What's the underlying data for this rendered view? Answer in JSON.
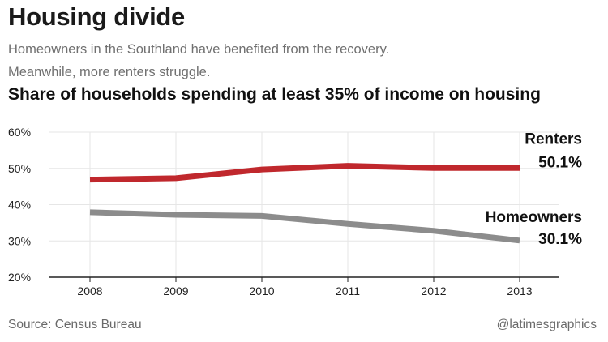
{
  "header": {
    "title": "Housing divide",
    "subtitle_line1": "Homeowners in the Southland have benefited from the recovery.",
    "subtitle_line2": "Meanwhile, more  renters struggle."
  },
  "chart_data": {
    "type": "line",
    "title": "Share of households spending at least 35% of income on housing",
    "xlabel": "",
    "ylabel": "",
    "x": [
      "2008",
      "2009",
      "2010",
      "2011",
      "2012",
      "2013"
    ],
    "ylim": [
      20,
      60
    ],
    "yticks": [
      20,
      30,
      40,
      50,
      60
    ],
    "ytick_labels": [
      "20%",
      "30%",
      "40%",
      "50%",
      "60%"
    ],
    "grid": true,
    "series": [
      {
        "name": "Renters",
        "values": [
          46.9,
          47.3,
          49.7,
          50.7,
          50.1,
          50.1
        ],
        "color": "#c0282d",
        "end_label": "50.1%"
      },
      {
        "name": "Homeowners",
        "values": [
          37.9,
          37.2,
          36.9,
          34.7,
          32.8,
          30.1
        ],
        "color": "#8c8c8c",
        "end_label": "30.1%"
      }
    ]
  },
  "footer": {
    "source": "Source: Census Bureau",
    "credit": "@latimesgraphics"
  }
}
